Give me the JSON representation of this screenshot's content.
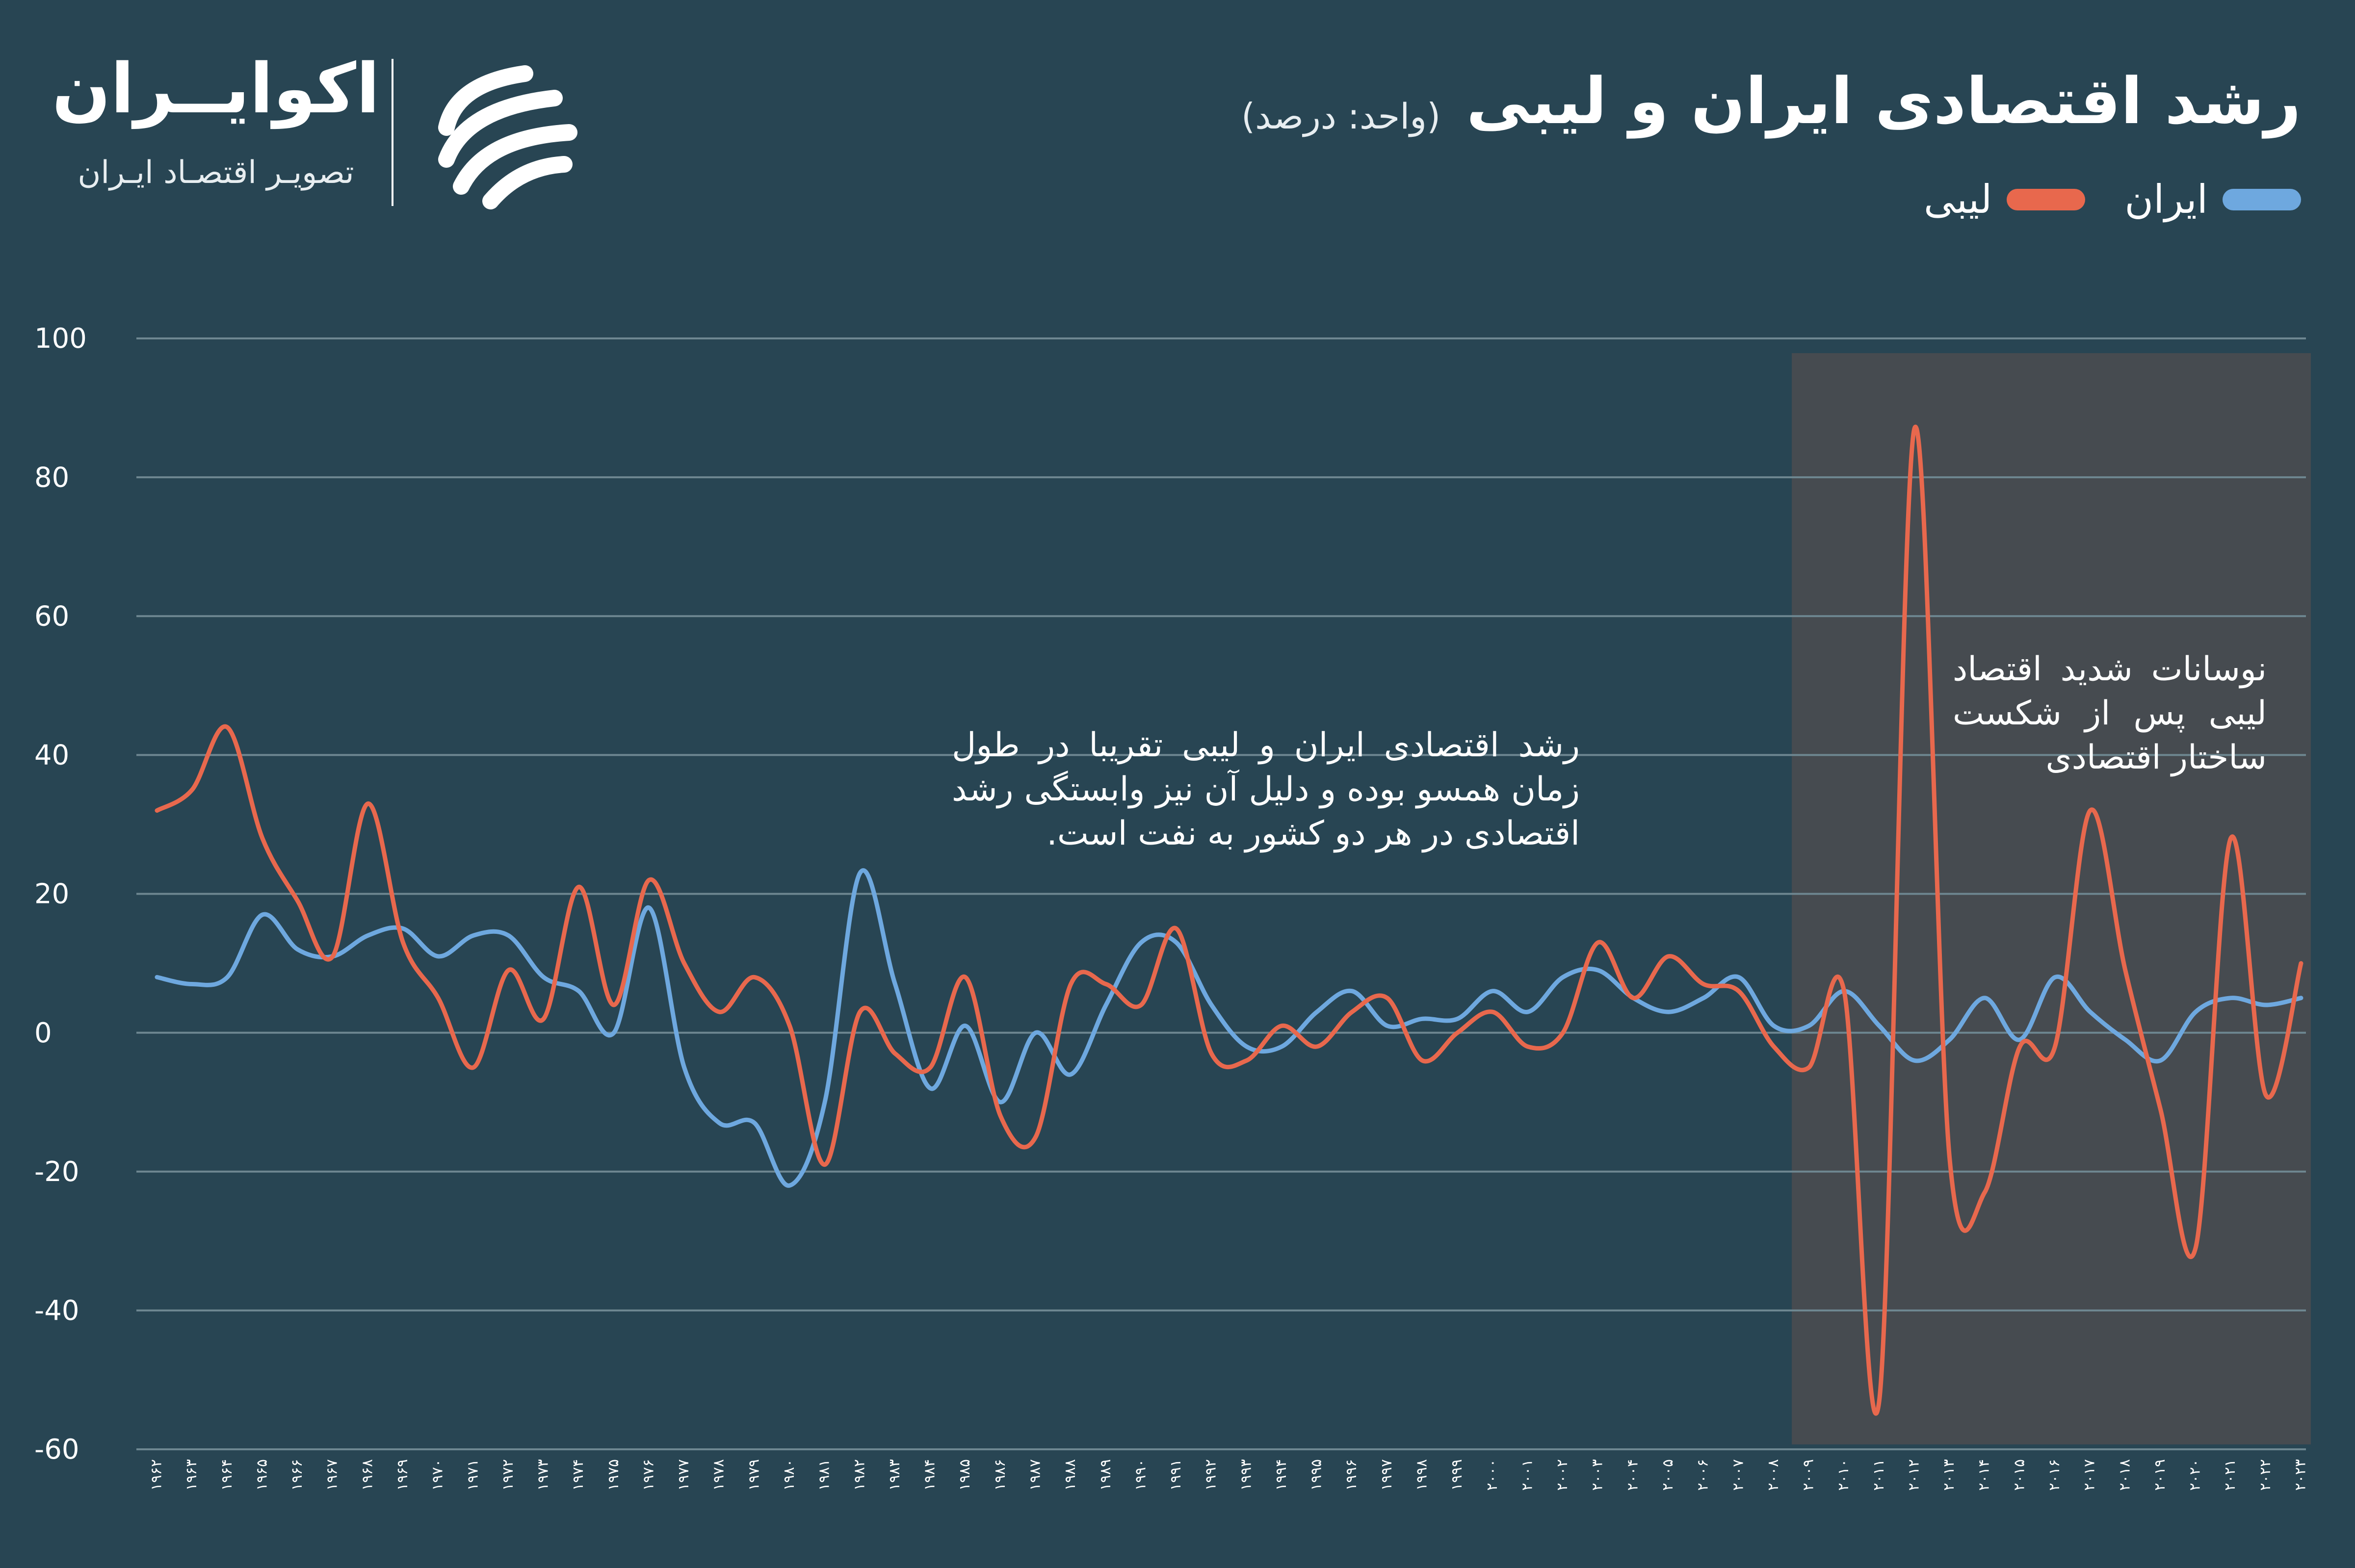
{
  "header": {
    "title": "رشد اقتصادی ایران و لیبی",
    "unit": "(واحد: درصد)"
  },
  "brand": {
    "name": "اکوایــران",
    "tagline": "تصویـر اقتصـاد ایـران",
    "logo_icon": "ecoiran-stripes-icon"
  },
  "colors": {
    "background": "#284553",
    "iran": "#6ea8df",
    "libya": "#e8684d",
    "highlight": "#464b50",
    "grid": "#6e8791"
  },
  "annotations": {
    "main": "رشد اقتصادی ایران و لیبی تقریبا در طول زمان همسو بوده و دلیل آن نیز وابستگی رشد اقتصادی در هر دو کشور به نفت است.",
    "highlight": "نوسانات شدید اقتصاد لیبی پس از شکست ساختار اقتصادی"
  },
  "chart_data": {
    "type": "line",
    "title": "رشد اقتصادی ایران و لیبی",
    "unit": "(واحد: درصد)",
    "legend_position": "top-right",
    "grid": true,
    "ylim": [
      -60,
      100
    ],
    "yticks": [
      "100",
      "80",
      "60",
      "40",
      "20",
      "0",
      "-20",
      "-40",
      "-60"
    ],
    "ytick_values": [
      100,
      80,
      60,
      40,
      20,
      0,
      -20,
      -40,
      -60
    ],
    "x": [
      "۱۹۶۲",
      "۱۹۶۳",
      "۱۹۶۴",
      "۱۹۶۵",
      "۱۹۶۶",
      "۱۹۶۷",
      "۱۹۶۸",
      "۱۹۶۹",
      "۱۹۷۰",
      "۱۹۷۱",
      "۱۹۷۲",
      "۱۹۷۳",
      "۱۹۷۴",
      "۱۹۷۵",
      "۱۹۷۶",
      "۱۹۷۷",
      "۱۹۷۸",
      "۱۹۷۹",
      "۱۹۸۰",
      "۱۹۸۱",
      "۱۹۸۲",
      "۱۹۸۳",
      "۱۹۸۴",
      "۱۹۸۵",
      "۱۹۸۶",
      "۱۹۸۷",
      "۱۹۸۸",
      "۱۹۸۹",
      "۱۹۹۰",
      "۱۹۹۱",
      "۱۹۹۲",
      "۱۹۹۳",
      "۱۹۹۴",
      "۱۹۹۵",
      "۱۹۹۶",
      "۱۹۹۷",
      "۱۹۹۸",
      "۱۹۹۹",
      "۲۰۰۰",
      "۲۰۰۱",
      "۲۰۰۲",
      "۲۰۰۳",
      "۲۰۰۴",
      "۲۰۰۵",
      "۲۰۰۶",
      "۲۰۰۷",
      "۲۰۰۸",
      "۲۰۰۹",
      "۲۰۱۰",
      "۲۰۱۱",
      "۲۰۱۲",
      "۲۰۱۳",
      "۲۰۱۴",
      "۲۰۱۵",
      "۲۰۱۶",
      "۲۰۱۷",
      "۲۰۱۸",
      "۲۰۱۹",
      "۲۰۲۰",
      "۲۰۲۱",
      "۲۰۲۲",
      "۲۰۲۳"
    ],
    "highlight_range": [
      "۲۰۰۹",
      "۲۰۲۳"
    ],
    "series": [
      {
        "name": "ایران",
        "color": "#6ea8df",
        "values": [
          8,
          7,
          8,
          17,
          12,
          11,
          14,
          15,
          11,
          14,
          14,
          8,
          6,
          0,
          18,
          -5,
          -13,
          -13,
          -22,
          -10,
          23,
          7,
          -8,
          1,
          -10,
          0,
          -6,
          4,
          13,
          13,
          4,
          -2,
          -2,
          3,
          6,
          1,
          2,
          2,
          6,
          3,
          8,
          9,
          5,
          3,
          5,
          8,
          1,
          1,
          6,
          1,
          -4,
          -1,
          5,
          -1,
          8,
          3,
          -1,
          -4,
          3,
          5,
          4,
          5
        ]
      },
      {
        "name": "لیبی",
        "color": "#e8684d",
        "values": [
          32,
          35,
          44,
          28,
          19,
          11,
          33,
          13,
          5,
          -5,
          9,
          2,
          21,
          4,
          22,
          10,
          3,
          8,
          1,
          -19,
          3,
          -3,
          -5,
          8,
          -12,
          -15,
          7,
          7,
          4,
          15,
          -3,
          -4,
          1,
          -2,
          3,
          5,
          -4,
          0,
          3,
          -2,
          0,
          13,
          5,
          11,
          7,
          6,
          -2,
          -5,
          6,
          -53,
          87,
          -18,
          -23,
          -2,
          -2,
          32,
          9,
          -11,
          -31,
          28,
          -9,
          10
        ]
      }
    ]
  },
  "plot": {
    "x_first": 320,
    "x_last": 4690,
    "y_top": 690,
    "y_bottom": 2955,
    "grid_left": 278,
    "grid_right": 4700
  }
}
